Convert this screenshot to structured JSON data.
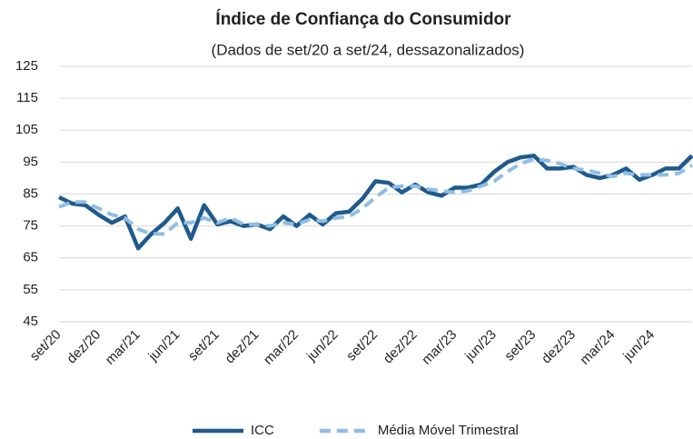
{
  "chart_data": {
    "type": "line",
    "title": "Índice de Confiança do Consumidor",
    "subtitle": "(Dados de set/20 a set/24, dessazonalizados)",
    "categories": [
      "set/20",
      null,
      null,
      "dez/20",
      null,
      null,
      "mar/21",
      null,
      null,
      "jun/21",
      null,
      null,
      "set/21",
      null,
      null,
      "dez/21",
      null,
      null,
      "mar/22",
      null,
      null,
      "jun/22",
      null,
      null,
      "set/22",
      null,
      null,
      "dez/22",
      null,
      null,
      "mar/23",
      null,
      null,
      "jun/23",
      null,
      null,
      "set/23",
      null,
      null,
      "dez/23",
      null,
      null,
      "mar/24",
      null,
      null,
      "jun/24",
      null,
      null,
      null
    ],
    "series": [
      {
        "name": "ICC",
        "color": "#1f5a8c",
        "dashed": false,
        "values": [
          84,
          82,
          81.5,
          78.5,
          76,
          78,
          68,
          72.5,
          76,
          80.5,
          71,
          81.5,
          75.5,
          76.5,
          75,
          75.5,
          74,
          78,
          75,
          78.5,
          75.5,
          79,
          79.5,
          83.5,
          89,
          88.5,
          85.5,
          88,
          85.5,
          84.5,
          87,
          87,
          88,
          92,
          95,
          96.5,
          97,
          93,
          93,
          93.5,
          91,
          90,
          91,
          93,
          89.5,
          91,
          93,
          93,
          97
        ]
      },
      {
        "name": "Média Móvel Trimestral",
        "color": "#8fbde6",
        "dashed": true,
        "values": [
          81,
          82.5,
          82.5,
          80.5,
          78.5,
          77.5,
          74,
          72.5,
          72.5,
          76,
          76,
          77.5,
          76,
          77.5,
          75.5,
          75.5,
          75,
          76,
          75.5,
          77,
          76.5,
          77.5,
          78,
          80.5,
          84,
          87,
          87.5,
          87.5,
          86.5,
          86,
          85.5,
          86,
          87.5,
          89,
          92,
          94.5,
          96,
          95.5,
          94.5,
          93,
          92.5,
          91.5,
          90.5,
          91.5,
          91,
          91,
          91,
          91.5,
          94
        ]
      }
    ],
    "ylim": [
      45,
      125
    ],
    "yticks": [
      45,
      55,
      65,
      75,
      85,
      95,
      105,
      115,
      125
    ],
    "grid": true,
    "legend": "bottom"
  }
}
